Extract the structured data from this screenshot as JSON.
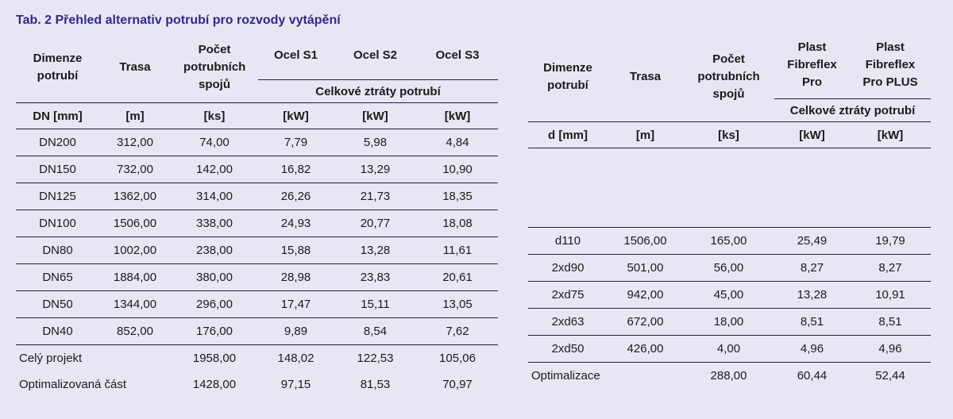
{
  "title": "Tab. 2 Přehled alternativ potrubí pro rozvody vytápění",
  "left_table": {
    "headers": {
      "dimenze": "Dimenze potrubí",
      "trasa": "Trasa",
      "pocet": "Počet potrubních spojů",
      "s1": "Ocel S1",
      "s2": "Ocel S2",
      "s3": "Ocel S3",
      "group": "Celkové ztráty potrubí"
    },
    "units": [
      "DN [mm]",
      "[m]",
      "[ks]",
      "[kW]",
      "[kW]",
      "[kW]"
    ],
    "rows": [
      [
        "DN200",
        "312,00",
        "74,00",
        "7,79",
        "5,98",
        "4,84"
      ],
      [
        "DN150",
        "732,00",
        "142,00",
        "16,82",
        "13,29",
        "10,90"
      ],
      [
        "DN125",
        "1362,00",
        "314,00",
        "26,26",
        "21,73",
        "18,35"
      ],
      [
        "DN100",
        "1506,00",
        "338,00",
        "24,93",
        "20,77",
        "18,08"
      ],
      [
        "DN80",
        "1002,00",
        "238,00",
        "15,88",
        "13,28",
        "11,61"
      ],
      [
        "DN65",
        "1884,00",
        "380,00",
        "28,98",
        "23,83",
        "20,61"
      ],
      [
        "DN50",
        "1344,00",
        "296,00",
        "17,47",
        "15,11",
        "13,05"
      ],
      [
        "DN40",
        "852,00",
        "176,00",
        "9,89",
        "8,54",
        "7,62"
      ]
    ],
    "summary": [
      [
        "Celý projekt",
        "1958,00",
        "148,02",
        "122,53",
        "105,06"
      ],
      [
        "Optimalizovaná část",
        "1428,00",
        "97,15",
        "81,53",
        "70,97"
      ]
    ]
  },
  "right_table": {
    "headers": {
      "dimenze": "Dimenze potrubí",
      "trasa": "Trasa",
      "pocet": "Počet potrubních spojů",
      "pro_l1": "Plast",
      "pro_l2": "Fibreflex",
      "pro_l3": "Pro",
      "plus_l1": "Plast",
      "plus_l2": "Fibreflex",
      "plus_l3": "Pro PLUS",
      "group": "Celkové ztráty potrubí"
    },
    "units": [
      "d [mm]",
      "[m]",
      "[ks]",
      "[kW]",
      "[kW]"
    ],
    "rows": [
      [
        "d110",
        "1506,00",
        "165,00",
        "25,49",
        "19,79"
      ],
      [
        "2xd90",
        "501,00",
        "56,00",
        "8,27",
        "8,27"
      ],
      [
        "2xd75",
        "942,00",
        "45,00",
        "13,28",
        "10,91"
      ],
      [
        "2xd63",
        "672,00",
        "18,00",
        "8,51",
        "8,51"
      ],
      [
        "2xd50",
        "426,00",
        "4,00",
        "4,96",
        "4,96"
      ]
    ],
    "summary": [
      "Optimalizace",
      "288,00",
      "60,44",
      "52,44"
    ]
  }
}
